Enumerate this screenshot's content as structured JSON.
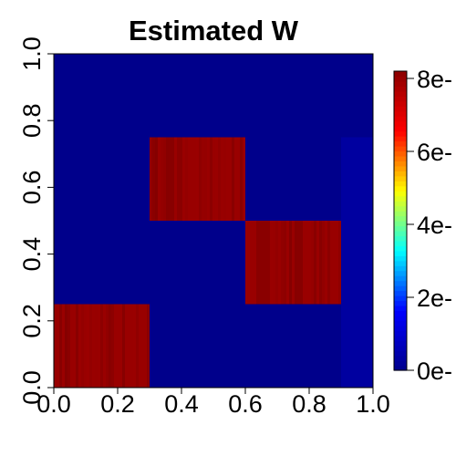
{
  "chart_data": {
    "type": "heatmap",
    "title": "Estimated W",
    "xlabel": "",
    "ylabel": "",
    "xlim": [
      0.0,
      1.0
    ],
    "ylim": [
      0.0,
      1.0
    ],
    "x_ticks": [
      "0.0",
      "0.2",
      "0.4",
      "0.6",
      "0.8",
      "1.0"
    ],
    "x_tick_values": [
      0.0,
      0.2,
      0.4,
      0.6,
      0.8,
      1.0
    ],
    "y_ticks": [
      "0.0",
      "0.2",
      "0.4",
      "0.6",
      "0.8",
      "1.0"
    ],
    "y_tick_values": [
      0.0,
      0.2,
      0.4,
      0.6,
      0.8,
      1.0
    ],
    "colorbar": {
      "tick_labels": [
        "0e-",
        "2e-",
        "4e-",
        "6e-",
        "8e-"
      ],
      "tick_values": [
        0,
        2,
        4,
        6,
        8
      ],
      "range": [
        0,
        8.2
      ],
      "colormap": [
        "#00008B",
        "#0000FF",
        "#00FFFF",
        "#FFFF00",
        "#FF0000",
        "#8B0000"
      ]
    },
    "background_value": 0,
    "blocks": [
      {
        "x": [
          0.0,
          0.3
        ],
        "y": [
          0.0,
          0.25
        ],
        "value": 8
      },
      {
        "x": [
          0.3,
          0.6
        ],
        "y": [
          0.5,
          0.75
        ],
        "value": 8
      },
      {
        "x": [
          0.6,
          0.9
        ],
        "y": [
          0.25,
          0.5
        ],
        "value": 8
      },
      {
        "x": [
          0.9,
          1.0
        ],
        "y": [
          0.0,
          0.75
        ],
        "value": 0.3
      }
    ]
  }
}
